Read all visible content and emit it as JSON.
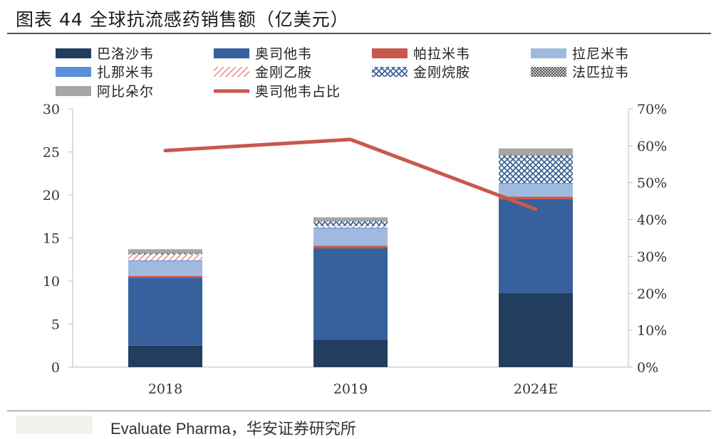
{
  "title": "图表 44 全球抗流感药销售额（亿美元）",
  "source": "Evaluate Pharma，华安证券研究所",
  "chart_data": {
    "type": "bar",
    "stacked": true,
    "categories": [
      "2018",
      "2019",
      "2024E"
    ],
    "left_axis": {
      "min": 0,
      "max": 30,
      "ticks": [
        "0",
        "5",
        "10",
        "15",
        "20",
        "25",
        "30"
      ]
    },
    "right_axis": {
      "min": 0,
      "max": 70,
      "ticks": [
        "0%",
        "10%",
        "20%",
        "30%",
        "40%",
        "50%",
        "60%",
        "70%"
      ]
    },
    "grid": false,
    "legend_position": "top",
    "series": [
      {
        "name": "巴洛沙韦",
        "color": "#233d5e",
        "pattern": "solid",
        "values": [
          2.5,
          3.2,
          8.6
        ]
      },
      {
        "name": "奥司他韦",
        "color": "#36619c",
        "pattern": "solid",
        "values": [
          7.9,
          10.6,
          10.9
        ]
      },
      {
        "name": "帕拉米韦",
        "color": "#c8584c",
        "pattern": "solid",
        "values": [
          0.2,
          0.3,
          0.3
        ]
      },
      {
        "name": "拉尼米韦",
        "color": "#9fbade",
        "pattern": "solid",
        "values": [
          1.7,
          2.0,
          1.5
        ]
      },
      {
        "name": "扎那米韦",
        "color": "#5c8fd9",
        "pattern": "solid",
        "values": [
          0.1,
          0.1,
          0.1
        ]
      },
      {
        "name": "金刚乙胺",
        "color": "#d9534f",
        "pattern": "diag",
        "values": [
          0.7,
          0.2,
          0.0
        ]
      },
      {
        "name": "金刚烷胺",
        "color": "#2f5a8e",
        "pattern": "cross",
        "values": [
          0.1,
          0.5,
          3.2
        ]
      },
      {
        "name": "法匹拉韦",
        "color": "#666666",
        "pattern": "dots",
        "values": [
          0.1,
          0.1,
          0.1
        ]
      },
      {
        "name": "阿比朵尔",
        "color": "#a6a6a6",
        "pattern": "solid",
        "values": [
          0.4,
          0.4,
          0.7
        ]
      }
    ],
    "line_series": {
      "name": "奥司他韦占比",
      "color": "#c8584c",
      "values": [
        0.587,
        0.617,
        0.428
      ]
    }
  }
}
